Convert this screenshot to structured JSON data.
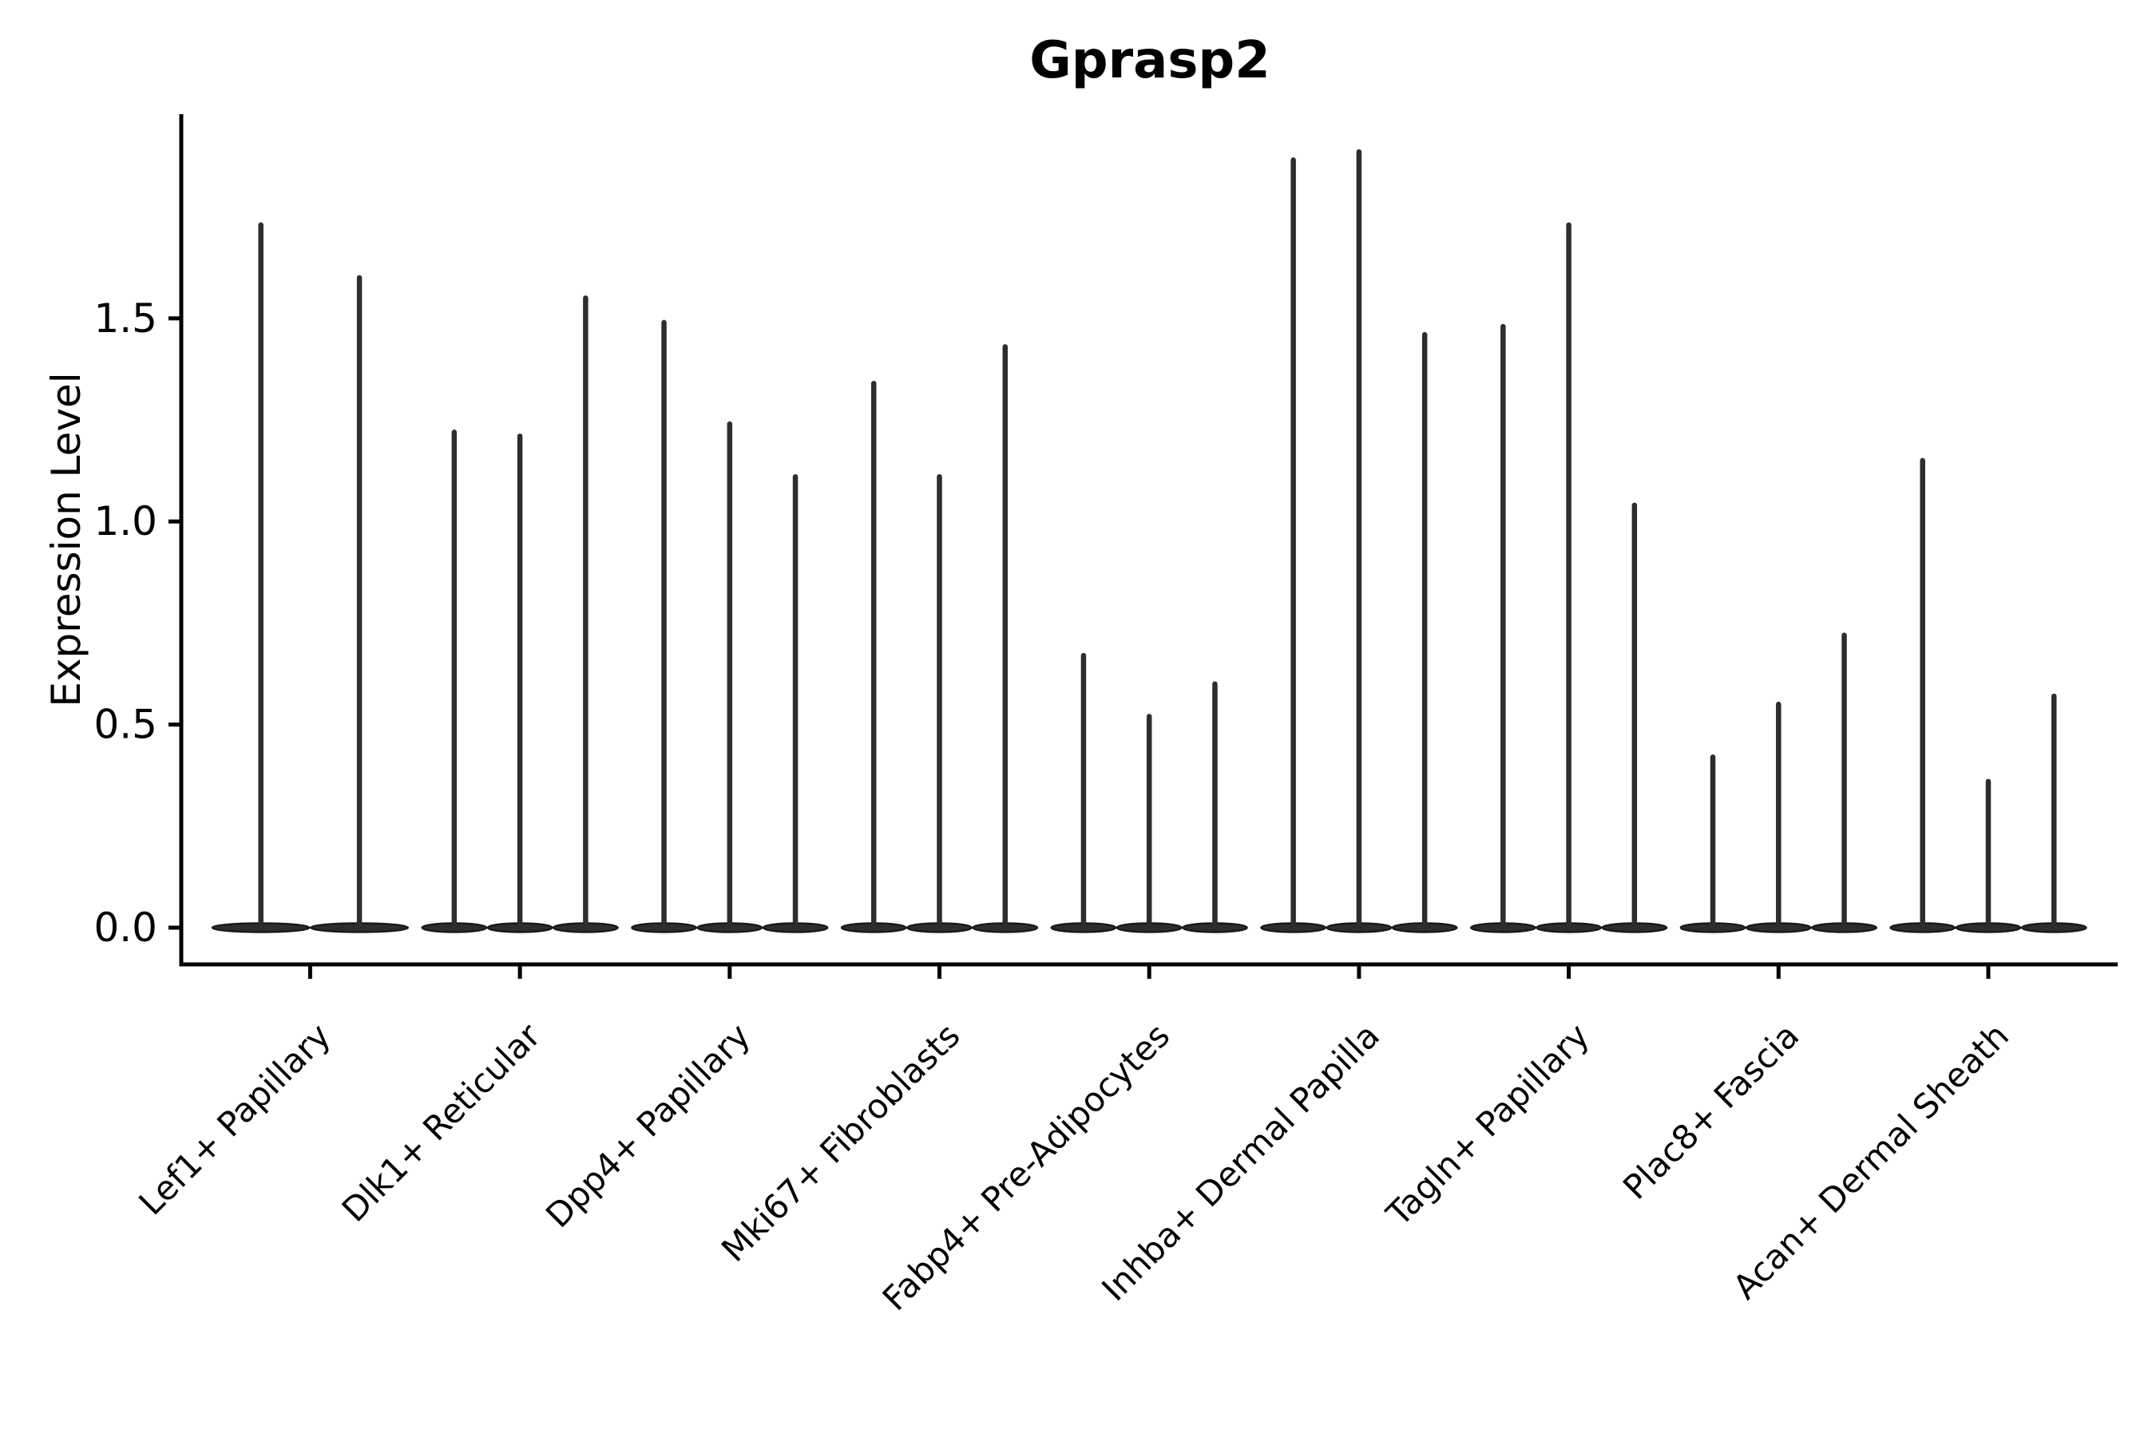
{
  "title": "Gprasp2",
  "chart_data": {
    "type": "violin",
    "title": "Gprasp2",
    "ylabel": "Expression Level",
    "xlabel": "",
    "grid": false,
    "legend": "none",
    "background_color": "#ffffff",
    "violin_color": "#2d2d2d",
    "axis_color": "#000000",
    "y_ticks": [
      "0.0",
      "0.5",
      "1.0",
      "1.5"
    ],
    "y_tick_values": [
      0.0,
      0.5,
      1.0,
      1.5
    ],
    "ylim": [
      -0.09,
      2.0
    ],
    "categories": [
      "Lef1+ Papillary",
      "Dlk1+ Reticular",
      "Dpp4+ Papillary",
      "Mki67+ Fibroblasts",
      "Fabp4+ Pre-Adipocytes",
      "Inhba+ Dermal Papilla",
      "Tagln+ Papillary",
      "Plac8+ Fascia",
      "Acan+ Dermal Sheath"
    ],
    "groups": [
      {
        "label": "Lef1+ Papillary",
        "violin_peaks": [
          1.73,
          1.6
        ]
      },
      {
        "label": "Dlk1+ Reticular",
        "violin_peaks": [
          1.22,
          1.21,
          1.55
        ]
      },
      {
        "label": "Dpp4+ Papillary",
        "violin_peaks": [
          1.49,
          1.24,
          1.11
        ]
      },
      {
        "label": "Mki67+ Fibroblasts",
        "violin_peaks": [
          1.34,
          1.11,
          1.43
        ]
      },
      {
        "label": "Fabp4+ Pre-Adipocytes",
        "violin_peaks": [
          0.67,
          0.52,
          0.6
        ]
      },
      {
        "label": "Inhba+ Dermal Papilla",
        "violin_peaks": [
          1.89,
          1.91,
          1.46
        ]
      },
      {
        "label": "Tagln+ Papillary",
        "violin_peaks": [
          1.48,
          1.73,
          1.04
        ]
      },
      {
        "label": "Plac8+ Fascia",
        "violin_peaks": [
          0.42,
          0.55,
          0.72
        ]
      },
      {
        "label": "Acan+ Dermal Sheath",
        "violin_peaks": [
          1.15,
          0.36,
          0.57
        ]
      }
    ]
  }
}
